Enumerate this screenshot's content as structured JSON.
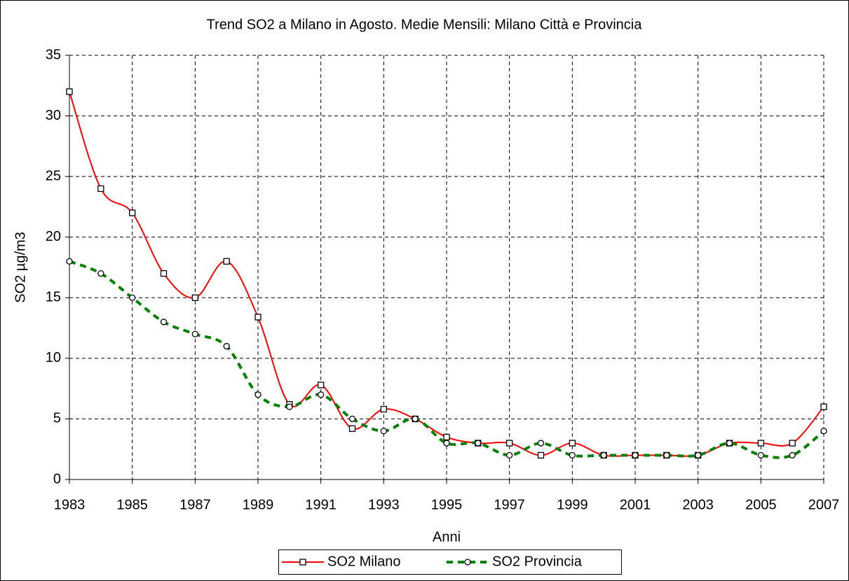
{
  "chart_data": {
    "type": "line",
    "title": "Trend SO2 a Milano in Agosto. Medie Mensili: Milano Città e Provincia",
    "x_label": "Anni",
    "y_label": "SO2 µg/m3",
    "x": [
      1983,
      1984,
      1985,
      1986,
      1987,
      1988,
      1989,
      1990,
      1991,
      1992,
      1993,
      1994,
      1995,
      1996,
      1997,
      1998,
      1999,
      2000,
      2001,
      2002,
      2003,
      2004,
      2005,
      2006,
      2007
    ],
    "series": [
      {
        "name": "SO2 Milano",
        "color": "#ff0000",
        "marker": "square",
        "values": [
          32,
          24,
          22,
          17,
          15,
          18,
          13.4,
          6.2,
          7.8,
          4.2,
          5.8,
          5,
          3.5,
          3,
          3,
          2,
          3,
          2,
          2,
          2,
          2,
          3,
          3,
          3,
          6
        ]
      },
      {
        "name": "SO2 Provincia",
        "color": "#008000",
        "marker": "circle",
        "dashed": true,
        "values": [
          18,
          17,
          15,
          13,
          12,
          11,
          7,
          6,
          7,
          5,
          4,
          5,
          3,
          3,
          2,
          3,
          2,
          2,
          2,
          2,
          2,
          3,
          2,
          2,
          4
        ]
      }
    ],
    "xlim": [
      1983,
      2007
    ],
    "xticks": [
      1983,
      1985,
      1987,
      1989,
      1991,
      1993,
      1995,
      1997,
      1999,
      2001,
      2003,
      2005,
      2007
    ],
    "ylim": [
      0,
      35
    ],
    "yticks": [
      0,
      5,
      10,
      15,
      20,
      25,
      30,
      35
    ],
    "grid": true,
    "legend": "bottom"
  }
}
